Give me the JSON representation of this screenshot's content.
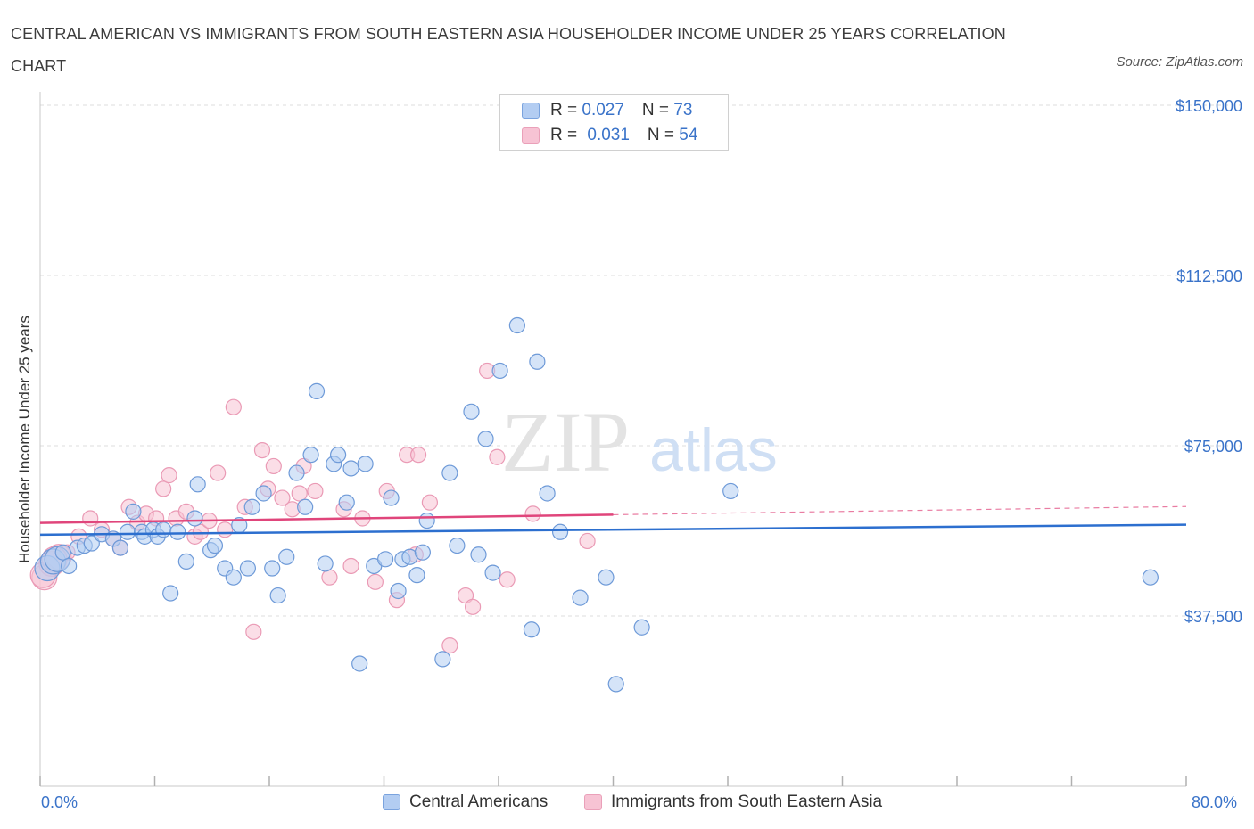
{
  "title": "CENTRAL AMERICAN VS IMMIGRANTS FROM SOUTH EASTERN ASIA HOUSEHOLDER INCOME UNDER 25 YEARS CORRELATION CHART",
  "source": "Source: ZipAtlas.com",
  "watermark": {
    "zip": "ZIP",
    "atlas": "atlas"
  },
  "colors": {
    "blue": "#3a73c9",
    "blue_fill": "#b3cdf2",
    "blue_line": "#2c6fcf",
    "pink": "#e87ca0",
    "pink_fill": "#f7c3d4",
    "pink_line": "#e0457b"
  },
  "legend": {
    "rows": [
      {
        "r_label": "R = ",
        "r_value": "0.027",
        "n_label": "N = ",
        "n_value": "73"
      },
      {
        "r_label": "R = ",
        "r_value": "0.031",
        "n_label": "N = ",
        "n_value": "54"
      }
    ]
  },
  "chart_data": {
    "type": "scatter",
    "title": "CENTRAL AMERICAN VS IMMIGRANTS FROM SOUTH EASTERN ASIA HOUSEHOLDER INCOME UNDER 25 YEARS CORRELATION CHART",
    "xlabel": "",
    "ylabel": "Householder Income Under 25 years",
    "xlim": [
      0,
      80
    ],
    "ylim": [
      0,
      150000
    ],
    "x_tick_labels": [
      "0.0%",
      "80.0%"
    ],
    "y_ticks": [
      37500,
      75000,
      112500,
      150000
    ],
    "y_tick_labels": [
      "$37,500",
      "$75,000",
      "$112,500",
      "$150,000"
    ],
    "grid": true,
    "legend_position": "top-center",
    "series": [
      {
        "name": "Central Americans",
        "color": "#3a73c9",
        "R": 0.027,
        "N": 73,
        "trend": {
          "x": [
            0,
            80
          ],
          "y": [
            55400,
            57600
          ]
        },
        "points": [
          [
            0.5,
            48000
          ],
          [
            0.9,
            49500
          ],
          [
            1.2,
            50000
          ],
          [
            1.6,
            51500
          ],
          [
            2.0,
            48500
          ],
          [
            2.6,
            52500
          ],
          [
            3.1,
            53000
          ],
          [
            3.6,
            53500
          ],
          [
            4.3,
            55500
          ],
          [
            5.1,
            54500
          ],
          [
            5.6,
            52500
          ],
          [
            6.1,
            56000
          ],
          [
            6.5,
            60500
          ],
          [
            7.1,
            56000
          ],
          [
            7.3,
            55000
          ],
          [
            7.9,
            56500
          ],
          [
            8.2,
            55000
          ],
          [
            8.6,
            56500
          ],
          [
            9.1,
            42500
          ],
          [
            9.6,
            56000
          ],
          [
            10.2,
            49500
          ],
          [
            10.8,
            59000
          ],
          [
            11.0,
            66500
          ],
          [
            11.9,
            52000
          ],
          [
            12.2,
            53000
          ],
          [
            12.9,
            48000
          ],
          [
            13.5,
            46000
          ],
          [
            13.9,
            57500
          ],
          [
            14.5,
            48000
          ],
          [
            14.8,
            61500
          ],
          [
            15.6,
            64500
          ],
          [
            16.2,
            48000
          ],
          [
            16.6,
            42000
          ],
          [
            17.2,
            50500
          ],
          [
            17.9,
            69000
          ],
          [
            18.5,
            61500
          ],
          [
            18.9,
            73000
          ],
          [
            19.3,
            87000
          ],
          [
            19.9,
            49000
          ],
          [
            20.5,
            71000
          ],
          [
            20.8,
            73000
          ],
          [
            21.4,
            62500
          ],
          [
            21.7,
            70000
          ],
          [
            22.3,
            27000
          ],
          [
            22.7,
            71000
          ],
          [
            23.3,
            48500
          ],
          [
            24.1,
            50000
          ],
          [
            24.5,
            63500
          ],
          [
            25.0,
            43000
          ],
          [
            25.3,
            50000
          ],
          [
            25.8,
            50500
          ],
          [
            26.3,
            46500
          ],
          [
            26.7,
            51500
          ],
          [
            27.0,
            58500
          ],
          [
            28.1,
            28000
          ],
          [
            28.6,
            69000
          ],
          [
            29.1,
            53000
          ],
          [
            30.1,
            82500
          ],
          [
            30.6,
            51000
          ],
          [
            31.1,
            76500
          ],
          [
            31.6,
            47000
          ],
          [
            32.1,
            91500
          ],
          [
            33.3,
            101500
          ],
          [
            34.3,
            34500
          ],
          [
            34.7,
            93500
          ],
          [
            35.4,
            64500
          ],
          [
            36.3,
            56000
          ],
          [
            37.7,
            41500
          ],
          [
            39.5,
            46000
          ],
          [
            40.2,
            22500
          ],
          [
            42.0,
            35000
          ],
          [
            48.2,
            65000
          ],
          [
            77.5,
            46000
          ]
        ]
      },
      {
        "name": "Immigrants from South Eastern Asia",
        "color": "#e87ca0",
        "R": 0.031,
        "N": 54,
        "trend": {
          "x": [
            0,
            40
          ],
          "y": [
            58000,
            59800
          ]
        },
        "trend_dashed": {
          "x": [
            40,
            80
          ],
          "y": [
            59800,
            61600
          ]
        },
        "points": [
          [
            0.3,
            46000
          ],
          [
            0.8,
            49000
          ],
          [
            1.3,
            50500
          ],
          [
            1.9,
            51500
          ],
          [
            2.7,
            55000
          ],
          [
            3.5,
            59000
          ],
          [
            4.3,
            56500
          ],
          [
            5.1,
            54500
          ],
          [
            5.6,
            52500
          ],
          [
            6.2,
            61500
          ],
          [
            6.8,
            58000
          ],
          [
            7.4,
            60000
          ],
          [
            8.1,
            59000
          ],
          [
            8.6,
            65500
          ],
          [
            9.0,
            68500
          ],
          [
            9.5,
            59000
          ],
          [
            10.2,
            60500
          ],
          [
            10.8,
            55000
          ],
          [
            11.2,
            56000
          ],
          [
            11.8,
            58500
          ],
          [
            12.4,
            69000
          ],
          [
            12.9,
            56500
          ],
          [
            13.5,
            83500
          ],
          [
            14.3,
            61500
          ],
          [
            14.9,
            34000
          ],
          [
            15.5,
            74000
          ],
          [
            15.9,
            65500
          ],
          [
            16.3,
            70500
          ],
          [
            16.9,
            63500
          ],
          [
            17.6,
            61000
          ],
          [
            18.1,
            64500
          ],
          [
            18.4,
            70500
          ],
          [
            19.2,
            65000
          ],
          [
            20.2,
            46000
          ],
          [
            21.2,
            61000
          ],
          [
            21.7,
            48500
          ],
          [
            22.5,
            59000
          ],
          [
            23.4,
            45000
          ],
          [
            24.2,
            65000
          ],
          [
            24.9,
            41000
          ],
          [
            25.6,
            73000
          ],
          [
            26.4,
            73000
          ],
          [
            27.2,
            62500
          ],
          [
            28.6,
            31000
          ],
          [
            29.7,
            42000
          ],
          [
            30.2,
            39500
          ],
          [
            31.2,
            91500
          ],
          [
            31.9,
            72500
          ],
          [
            32.6,
            45500
          ],
          [
            34.4,
            60000
          ],
          [
            38.2,
            54000
          ],
          [
            26.2,
            51000
          ],
          [
            0.2,
            46500
          ],
          [
            1.0,
            50000
          ]
        ]
      }
    ]
  }
}
